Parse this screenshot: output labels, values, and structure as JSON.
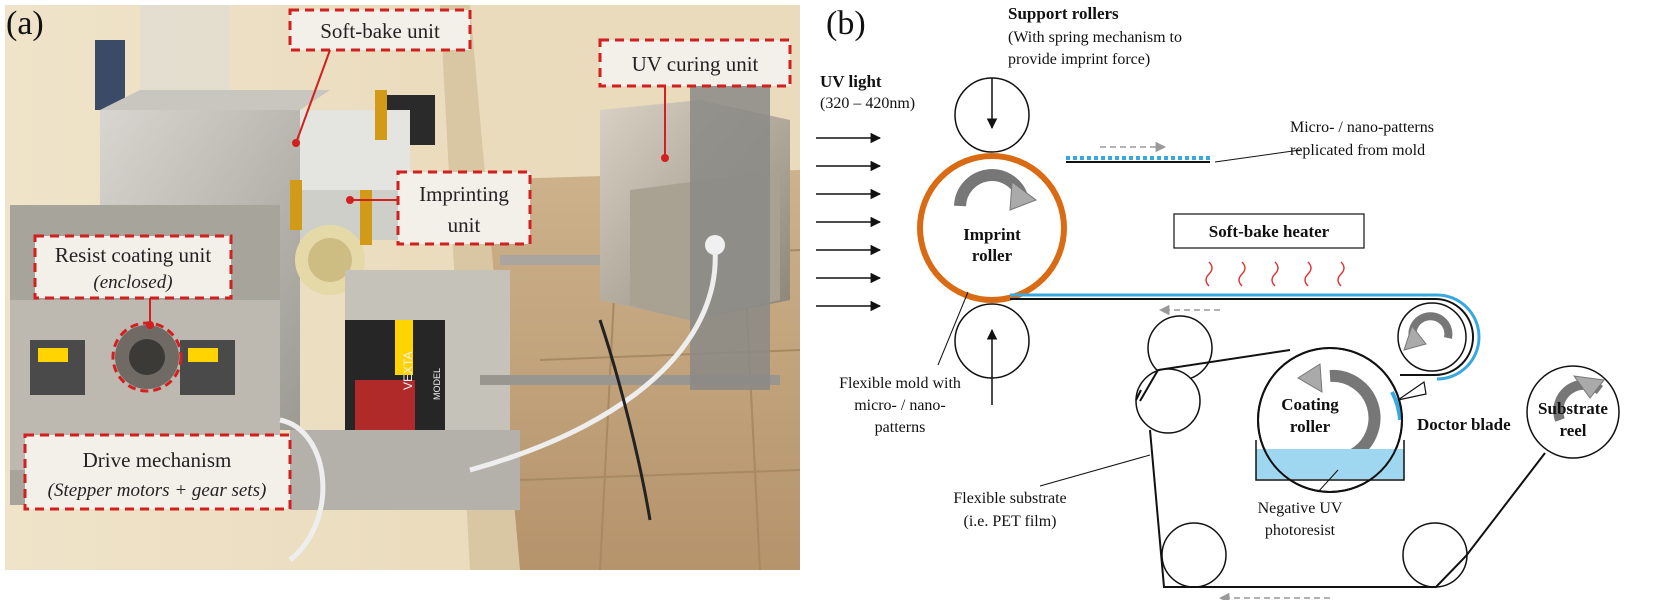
{
  "panel_a": {
    "label": "(a)",
    "callouts": {
      "soft_bake": "Soft-bake unit",
      "uv_curing": "UV curing unit",
      "imprinting_line1": "Imprinting",
      "imprinting_line2": "unit",
      "resist_coating": "Resist coating unit",
      "resist_coating_sub": "(enclosed)",
      "drive": "Drive mechanism",
      "drive_sub": "(Stepper motors + gear sets)"
    },
    "motor_brand": "VEXTA",
    "motor_model": "MODEL",
    "callout_border_color": "#d21f1f"
  },
  "panel_b": {
    "label": "(b)",
    "support_rollers_title": "Support rollers",
    "support_rollers_line1": "(With spring mechanism to",
    "support_rollers_line2": "provide imprint force)",
    "uv_light_title": "UV light",
    "uv_light_range": "(320 – 420nm)",
    "patterns_line1": "Micro- / nano-patterns",
    "patterns_line2": "replicated from mold",
    "imprint_roller_line1": "Imprint",
    "imprint_roller_line2": "roller",
    "soft_bake_heater": "Soft-bake heater",
    "mold_line1": "Flexible mold with",
    "mold_line2": "micro- / nano-",
    "mold_line3": "patterns",
    "coating_roller_line1": "Coating",
    "coating_roller_line2": "roller",
    "doctor_blade": "Doctor blade",
    "substrate_reel_line1": "Substrate",
    "substrate_reel_line2": "reel",
    "flex_substrate_line1": "Flexible substrate",
    "flex_substrate_line2": "(i.e. PET film)",
    "photoresist_line1": "Negative UV",
    "photoresist_line2": "photoresist",
    "colors": {
      "mold": "#d96b14",
      "resist": "#3aa8e0",
      "resist_fill": "#9fd6f0",
      "heater_waves": "#e03030",
      "arrow_gray": "#9a9a9a"
    }
  }
}
